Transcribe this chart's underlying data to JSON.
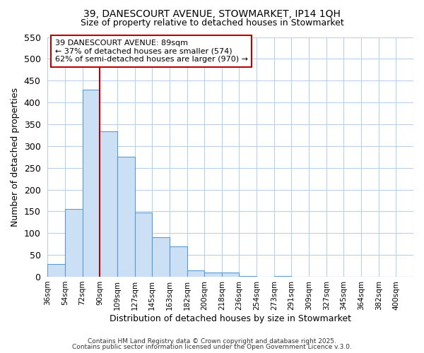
{
  "title1": "39, DANESCOURT AVENUE, STOWMARKET, IP14 1QH",
  "title2": "Size of property relative to detached houses in Stowmarket",
  "xlabel": "Distribution of detached houses by size in Stowmarket",
  "ylabel": "Number of detached properties",
  "bins": [
    "36sqm",
    "54sqm",
    "72sqm",
    "90sqm",
    "109sqm",
    "127sqm",
    "145sqm",
    "163sqm",
    "182sqm",
    "200sqm",
    "218sqm",
    "236sqm",
    "254sqm",
    "273sqm",
    "291sqm",
    "309sqm",
    "327sqm",
    "345sqm",
    "364sqm",
    "382sqm",
    "400sqm"
  ],
  "values": [
    29,
    155,
    430,
    333,
    275,
    148,
    90,
    70,
    14,
    10,
    10,
    2,
    0,
    2,
    0,
    0,
    0,
    0,
    0,
    0,
    0
  ],
  "bar_color": "#cce0f5",
  "bar_edge_color": "#5b9bd5",
  "vline_color": "#c00000",
  "annotation_title": "39 DANESCOURT AVENUE: 89sqm",
  "annotation_line2": "← 37% of detached houses are smaller (574)",
  "annotation_line3": "62% of semi-detached houses are larger (970) →",
  "annotation_box_edge_color": "#c00000",
  "ylim": [
    0,
    550
  ],
  "yticks": [
    0,
    50,
    100,
    150,
    200,
    250,
    300,
    350,
    400,
    450,
    500,
    550
  ],
  "footer1": "Contains HM Land Registry data © Crown copyright and database right 2025.",
  "footer2": "Contains public sector information licensed under the Open Government Licence v.3.0.",
  "fig_bg_color": "#ffffff",
  "plot_bg_color": "#ffffff",
  "grid_color": "#b8d0e8"
}
